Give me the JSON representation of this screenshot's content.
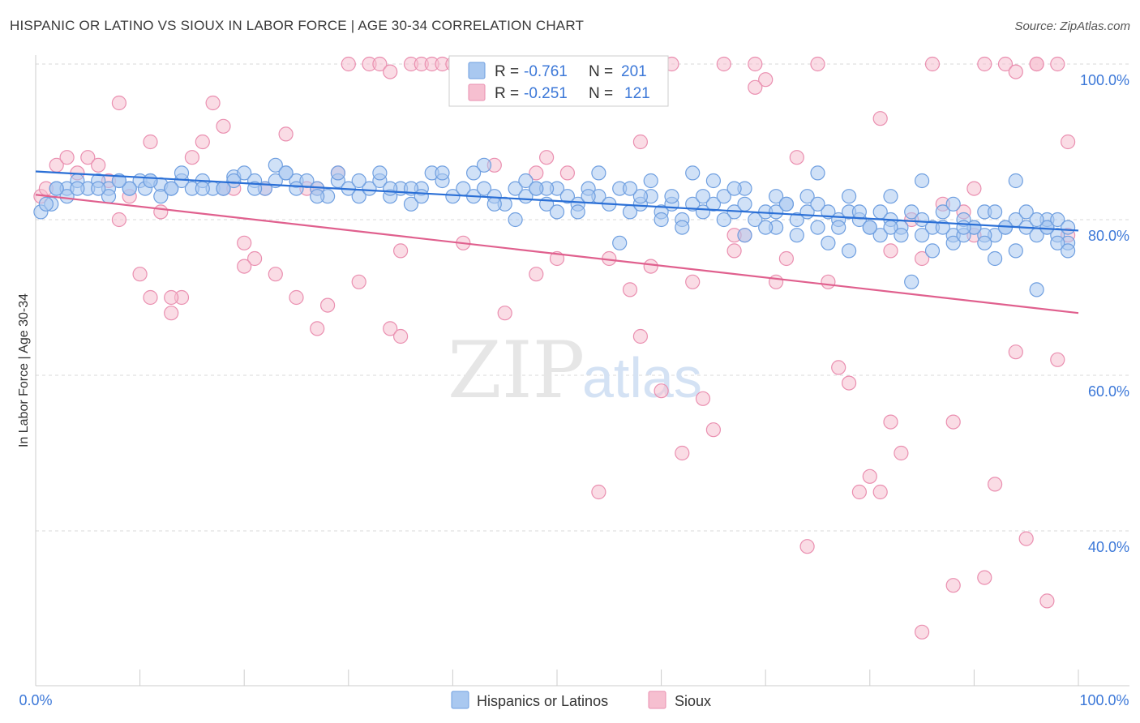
{
  "title": "HISPANIC OR LATINO VS SIOUX IN LABOR FORCE | AGE 30-34 CORRELATION CHART",
  "source": "Source: ZipAtlas.com",
  "watermark": {
    "zip": "ZIP",
    "atlas": "atlas"
  },
  "colors": {
    "blue_fill": "#a9c8f0",
    "blue_stroke": "#6f9fe0",
    "blue_line": "#2a6fd6",
    "pink_fill": "#f6bfd0",
    "pink_stroke": "#ea8fb0",
    "pink_line": "#e0608e",
    "grid": "#d8d8d8",
    "axis_text": "#3c78d8"
  },
  "legend": {
    "rows": [
      {
        "r_label": "R = ",
        "r_value": "-0.761",
        "n_label": "N = ",
        "n_value": "201"
      },
      {
        "r_label": "R = ",
        "r_value": "-0.251",
        "n_label": "N = ",
        "n_value": "121"
      }
    ]
  },
  "bottom_legend": {
    "series1": "Hispanics or Latinos",
    "series2": "Sioux"
  },
  "chart_data": {
    "type": "scatter",
    "title": "HISPANIC OR LATINO VS SIOUX IN LABOR FORCE | AGE 30-34 CORRELATION CHART",
    "xlabel": "",
    "ylabel": "In Labor Force | Age 30-34",
    "xlim": [
      0,
      100
    ],
    "ylim": [
      20,
      102
    ],
    "x_tick_labels": [
      "0.0%",
      "100.0%"
    ],
    "y_ticks": [
      {
        "value": 100,
        "label": "100.0%"
      },
      {
        "value": 80,
        "label": "80.0%"
      },
      {
        "value": 60,
        "label": "60.0%"
      },
      {
        "value": 40,
        "label": "40.0%"
      }
    ],
    "series": [
      {
        "name": "Hispanics or Latinos",
        "r": -0.761,
        "n": 201,
        "trend": {
          "x": [
            0,
            100
          ],
          "y": [
            86.2,
            78.6
          ]
        },
        "points": [
          [
            0.5,
            81
          ],
          [
            1.5,
            82
          ],
          [
            2,
            84
          ],
          [
            3,
            84
          ],
          [
            4,
            85
          ],
          [
            5,
            84
          ],
          [
            6,
            85
          ],
          [
            7,
            84
          ],
          [
            8,
            85
          ],
          [
            9,
            84
          ],
          [
            10,
            85
          ],
          [
            10.5,
            84
          ],
          [
            11,
            85
          ],
          [
            12,
            84.5
          ],
          [
            13,
            84
          ],
          [
            14,
            85
          ],
          [
            15,
            84
          ],
          [
            16,
            85
          ],
          [
            17,
            84
          ],
          [
            18,
            84
          ],
          [
            19,
            85.5
          ],
          [
            20,
            86
          ],
          [
            21,
            85
          ],
          [
            22,
            84
          ],
          [
            23,
            85
          ],
          [
            24,
            86
          ],
          [
            25,
            85
          ],
          [
            26,
            85
          ],
          [
            27,
            84
          ],
          [
            28,
            83
          ],
          [
            29,
            85
          ],
          [
            30,
            84
          ],
          [
            31,
            83
          ],
          [
            32,
            84
          ],
          [
            33,
            85
          ],
          [
            34,
            83
          ],
          [
            35,
            84
          ],
          [
            36,
            82
          ],
          [
            37,
            84
          ],
          [
            38,
            86
          ],
          [
            39,
            85
          ],
          [
            40,
            83
          ],
          [
            41,
            84
          ],
          [
            42,
            83
          ],
          [
            43,
            84
          ],
          [
            44,
            83
          ],
          [
            45,
            82
          ],
          [
            46,
            84
          ],
          [
            47,
            83
          ],
          [
            48,
            84
          ],
          [
            49,
            82
          ],
          [
            50,
            84
          ],
          [
            51,
            83
          ],
          [
            52,
            82
          ],
          [
            53,
            84
          ],
          [
            54,
            83
          ],
          [
            55,
            82
          ],
          [
            56,
            84
          ],
          [
            57,
            81
          ],
          [
            58,
            82
          ],
          [
            59,
            83
          ],
          [
            60,
            81
          ],
          [
            61,
            82
          ],
          [
            62,
            80
          ],
          [
            63,
            82
          ],
          [
            64,
            81
          ],
          [
            65,
            82
          ],
          [
            66,
            83
          ],
          [
            67,
            81
          ],
          [
            68,
            82
          ],
          [
            69,
            80
          ],
          [
            70,
            81
          ],
          [
            71,
            79
          ],
          [
            72,
            82
          ],
          [
            73,
            80
          ],
          [
            74,
            81
          ],
          [
            75,
            79
          ],
          [
            76,
            81
          ],
          [
            77,
            80
          ],
          [
            78,
            81
          ],
          [
            79,
            80
          ],
          [
            80,
            79
          ],
          [
            81,
            81
          ],
          [
            82,
            80
          ],
          [
            83,
            79
          ],
          [
            84,
            81
          ],
          [
            85,
            80
          ],
          [
            86,
            79
          ],
          [
            87,
            81
          ],
          [
            88,
            78
          ],
          [
            89,
            80
          ],
          [
            90,
            79
          ],
          [
            91,
            81
          ],
          [
            92,
            78
          ],
          [
            93,
            79
          ],
          [
            94,
            80
          ],
          [
            95,
            79
          ],
          [
            96,
            78
          ],
          [
            97,
            79
          ],
          [
            98,
            78
          ],
          [
            99,
            77
          ],
          [
            14,
            86
          ],
          [
            23,
            87
          ],
          [
            33,
            86
          ],
          [
            43,
            87
          ],
          [
            54,
            86
          ],
          [
            65,
            85
          ],
          [
            75,
            86
          ],
          [
            85,
            85
          ],
          [
            94,
            85
          ],
          [
            3,
            83
          ],
          [
            12,
            83
          ],
          [
            25,
            84
          ],
          [
            36,
            84
          ],
          [
            47,
            85
          ],
          [
            58,
            83
          ],
          [
            68,
            84
          ],
          [
            78,
            83
          ],
          [
            88,
            82
          ],
          [
            97,
            80
          ],
          [
            68,
            78
          ],
          [
            78,
            76
          ],
          [
            88,
            77
          ],
          [
            98,
            77
          ],
          [
            84,
            72
          ],
          [
            76,
            77
          ],
          [
            92,
            75
          ],
          [
            96,
            71
          ],
          [
            71,
            81
          ],
          [
            81,
            78
          ],
          [
            91,
            78
          ],
          [
            86,
            76
          ],
          [
            94,
            76
          ],
          [
            99,
            76
          ],
          [
            52,
            81
          ],
          [
            46,
            80
          ],
          [
            60,
            80
          ],
          [
            56,
            77
          ],
          [
            50,
            81
          ],
          [
            90,
            79
          ],
          [
            74,
            83
          ],
          [
            57,
            84
          ],
          [
            49,
            84
          ],
          [
            39,
            86
          ],
          [
            29,
            86
          ],
          [
            19,
            85
          ],
          [
            9,
            84
          ],
          [
            7,
            83
          ],
          [
            1,
            82
          ],
          [
            61,
            83
          ],
          [
            64,
            83
          ],
          [
            66,
            80
          ],
          [
            70,
            79
          ],
          [
            73,
            78
          ],
          [
            77,
            79
          ],
          [
            79,
            81
          ],
          [
            82,
            79
          ],
          [
            83,
            78
          ],
          [
            87,
            79
          ],
          [
            89,
            78
          ],
          [
            91,
            77
          ],
          [
            93,
            79
          ],
          [
            95,
            81
          ],
          [
            97,
            79
          ],
          [
            98,
            80
          ],
          [
            99,
            79
          ],
          [
            53,
            83
          ],
          [
            48,
            84
          ],
          [
            44,
            82
          ],
          [
            42,
            86
          ],
          [
            37,
            83
          ],
          [
            34,
            84
          ],
          [
            31,
            85
          ],
          [
            27,
            83
          ],
          [
            24,
            86
          ],
          [
            21,
            84
          ],
          [
            18,
            84
          ],
          [
            16,
            84
          ],
          [
            13,
            84
          ],
          [
            11,
            85
          ],
          [
            8,
            85
          ],
          [
            6,
            84
          ],
          [
            4,
            84
          ],
          [
            2,
            84
          ],
          [
            59,
            85
          ],
          [
            63,
            86
          ],
          [
            67,
            84
          ],
          [
            71,
            83
          ],
          [
            75,
            82
          ],
          [
            80,
            79
          ],
          [
            85,
            78
          ],
          [
            89,
            79
          ],
          [
            92,
            81
          ],
          [
            96,
            80
          ],
          [
            62,
            79
          ],
          [
            72,
            82
          ],
          [
            82,
            83
          ]
        ]
      },
      {
        "name": "Sioux",
        "r": -0.251,
        "n": 121,
        "trend": {
          "x": [
            0,
            100
          ],
          "y": [
            83.2,
            68.0
          ]
        },
        "points": [
          [
            0.5,
            83
          ],
          [
            1,
            84
          ],
          [
            2,
            87
          ],
          [
            3,
            88
          ],
          [
            4,
            86
          ],
          [
            5,
            88
          ],
          [
            6,
            87
          ],
          [
            7,
            85
          ],
          [
            8,
            80
          ],
          [
            9,
            83
          ],
          [
            10,
            73
          ],
          [
            11,
            70
          ],
          [
            12,
            81
          ],
          [
            13,
            68
          ],
          [
            14,
            70
          ],
          [
            15,
            88
          ],
          [
            16,
            90
          ],
          [
            17,
            95
          ],
          [
            18,
            84
          ],
          [
            19,
            84
          ],
          [
            20,
            77
          ],
          [
            21,
            75
          ],
          [
            22,
            84
          ],
          [
            23,
            73
          ],
          [
            24,
            91
          ],
          [
            25,
            70
          ],
          [
            26,
            84
          ],
          [
            27,
            84
          ],
          [
            28,
            69
          ],
          [
            29,
            86
          ],
          [
            30,
            100
          ],
          [
            31,
            72
          ],
          [
            32,
            100
          ],
          [
            33,
            100
          ],
          [
            34,
            99
          ],
          [
            35,
            76
          ],
          [
            36,
            100
          ],
          [
            37,
            100
          ],
          [
            38,
            100
          ],
          [
            39,
            100
          ],
          [
            40,
            100
          ],
          [
            41,
            100
          ],
          [
            42,
            100
          ],
          [
            43,
            100
          ],
          [
            45,
            68
          ],
          [
            47,
            100
          ],
          [
            48,
            86
          ],
          [
            49,
            88
          ],
          [
            50,
            75
          ],
          [
            51,
            86
          ],
          [
            52,
            100
          ],
          [
            53,
            100
          ],
          [
            54,
            45
          ],
          [
            55,
            75
          ],
          [
            56,
            100
          ],
          [
            57,
            71
          ],
          [
            58,
            65
          ],
          [
            59,
            74
          ],
          [
            60,
            58
          ],
          [
            61,
            100
          ],
          [
            62,
            50
          ],
          [
            63,
            72
          ],
          [
            64,
            57
          ],
          [
            65,
            53
          ],
          [
            66,
            100
          ],
          [
            67,
            76
          ],
          [
            68,
            78
          ],
          [
            69,
            100
          ],
          [
            70,
            98
          ],
          [
            71,
            72
          ],
          [
            72,
            75
          ],
          [
            73,
            88
          ],
          [
            74,
            38
          ],
          [
            75,
            100
          ],
          [
            76,
            72
          ],
          [
            77,
            61
          ],
          [
            78,
            59
          ],
          [
            79,
            45
          ],
          [
            80,
            47
          ],
          [
            81,
            45
          ],
          [
            82,
            54
          ],
          [
            83,
            50
          ],
          [
            84,
            80
          ],
          [
            85,
            75
          ],
          [
            86,
            100
          ],
          [
            87,
            82
          ],
          [
            88,
            54
          ],
          [
            89,
            81
          ],
          [
            90,
            78
          ],
          [
            91,
            100
          ],
          [
            92,
            46
          ],
          [
            93,
            100
          ],
          [
            94,
            63
          ],
          [
            95,
            39
          ],
          [
            96,
            100
          ],
          [
            97,
            31
          ],
          [
            98,
            100
          ],
          [
            99,
            90
          ],
          [
            94,
            99
          ],
          [
            82,
            76
          ],
          [
            85,
            27
          ],
          [
            88,
            33
          ],
          [
            91,
            34
          ],
          [
            11,
            90
          ],
          [
            20,
            74
          ],
          [
            27,
            66
          ],
          [
            34,
            66
          ],
          [
            41,
            77
          ],
          [
            48,
            73
          ],
          [
            8,
            95
          ],
          [
            18,
            92
          ],
          [
            44,
            87
          ],
          [
            58,
            90
          ],
          [
            69,
            97
          ],
          [
            13,
            70
          ],
          [
            35,
            65
          ],
          [
            67,
            78
          ],
          [
            81,
            93
          ],
          [
            90,
            84
          ],
          [
            96,
            100
          ],
          [
            98,
            62
          ],
          [
            99,
            78
          ]
        ]
      }
    ]
  }
}
